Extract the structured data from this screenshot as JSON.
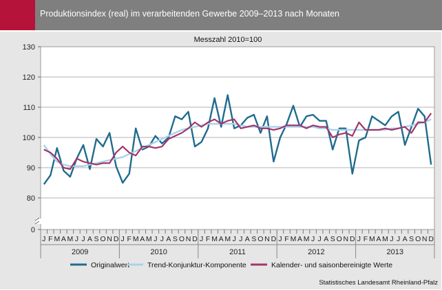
{
  "header": {
    "title": "Produktionsindex (real) im verarbeitenden Gewerbe 2009–2013 nach Monaten",
    "accent_color": "#b5133a",
    "band_color": "#7f7f7f"
  },
  "source": "Statistisches Landesamt Rheinland-Pfalz",
  "chart_data": {
    "type": "line",
    "subtitle": "Messzahl 2010=100",
    "ylim": [
      0,
      130
    ],
    "yticks": [
      0,
      80,
      90,
      100,
      110,
      120,
      130
    ],
    "y_axis_break": "between 0 and 80",
    "grid": true,
    "legend_position": "bottom",
    "month_labels": [
      "J",
      "F",
      "M",
      "A",
      "M",
      "J",
      "J",
      "A",
      "S",
      "O",
      "N",
      "D"
    ],
    "years": [
      "2009",
      "2010",
      "2011",
      "2012",
      "2013"
    ],
    "series": [
      {
        "name": "Originalwert",
        "color": "#1f6b8e",
        "values": [
          84.5,
          87.5,
          96.5,
          89,
          87,
          93,
          97.5,
          89.5,
          99.5,
          97,
          101.5,
          90.5,
          85,
          88,
          103,
          96,
          97,
          100.5,
          98,
          100,
          107,
          106,
          108.5,
          97,
          98.5,
          103,
          113,
          103.5,
          114,
          103,
          104,
          106.5,
          107.5,
          101.5,
          107,
          92,
          100,
          104.5,
          110.5,
          103.5,
          107,
          107.5,
          105.5,
          105.5,
          96,
          103,
          103,
          88,
          99,
          100,
          107,
          105.5,
          104,
          107,
          108.5,
          97.5,
          103.5,
          109.5,
          107,
          91
        ]
      },
      {
        "name": "Trend-Konjunktur-Komponente",
        "color": "#a9d2ea",
        "values": [
          97.5,
          94.5,
          92,
          91,
          90.5,
          90.5,
          90.5,
          91,
          91.5,
          92,
          92.5,
          93,
          93.5,
          94.5,
          95.5,
          96.5,
          97.5,
          98.5,
          99.5,
          100.5,
          101.5,
          102.5,
          103,
          103.5,
          104,
          104.5,
          104.5,
          104.5,
          104.5,
          104.5,
          104,
          103.5,
          103.5,
          103.5,
          103.5,
          103.5,
          103.5,
          103.5,
          103.5,
          103.5,
          103.5,
          103.5,
          103,
          103,
          102.5,
          102.5,
          102.5,
          102.5,
          102.5,
          102.5,
          102.5,
          102.5,
          102.5,
          103,
          103,
          103.5,
          104,
          104.5,
          105,
          106
        ]
      },
      {
        "name": "Kalender- und saisonbereinigte Werte",
        "color": "#a1356b",
        "values": [
          96,
          95,
          93,
          90,
          89.5,
          93,
          92,
          91.5,
          91,
          91.5,
          91.5,
          95,
          97,
          95,
          94,
          97,
          97,
          96.5,
          97,
          99.5,
          100.5,
          101.5,
          103,
          105,
          103.5,
          105,
          106,
          104.5,
          105.5,
          106,
          103,
          103.5,
          104,
          103,
          103,
          102.5,
          103,
          104,
          104,
          104,
          103,
          104,
          103.5,
          103.5,
          100,
          101,
          101.5,
          100.5,
          105,
          102.5,
          102.5,
          102.5,
          103,
          102.5,
          103,
          103.5,
          101.5,
          105,
          105,
          108
        ]
      }
    ]
  }
}
